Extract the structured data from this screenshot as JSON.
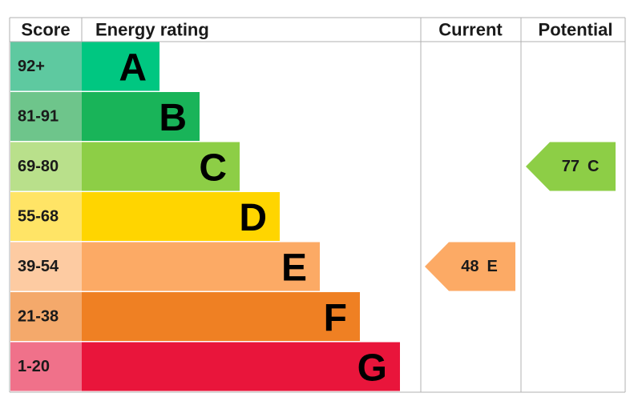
{
  "chart_data": {
    "type": "epc",
    "headers": {
      "score": "Score",
      "rating": "Energy rating",
      "current": "Current",
      "potential": "Potential"
    },
    "bands": [
      {
        "score": "92+",
        "letter": "A",
        "color": "#00c781",
        "score_color": "#5ec9a0"
      },
      {
        "score": "81-91",
        "letter": "B",
        "color": "#19b459",
        "score_color": "#6ec58b"
      },
      {
        "score": "69-80",
        "letter": "C",
        "color": "#8dce46",
        "score_color": "#b9e08b"
      },
      {
        "score": "55-68",
        "letter": "D",
        "color": "#ffd500",
        "score_color": "#ffe466"
      },
      {
        "score": "39-54",
        "letter": "E",
        "color": "#fcaa65",
        "score_color": "#fdcba2"
      },
      {
        "score": "21-38",
        "letter": "F",
        "color": "#ef8023",
        "score_color": "#f4a96b"
      },
      {
        "score": "1-20",
        "letter": "G",
        "color": "#e9153b",
        "score_color": "#f0718a"
      }
    ],
    "current": {
      "value": 48,
      "band": "E"
    },
    "potential": {
      "value": 77,
      "band": "C"
    }
  }
}
